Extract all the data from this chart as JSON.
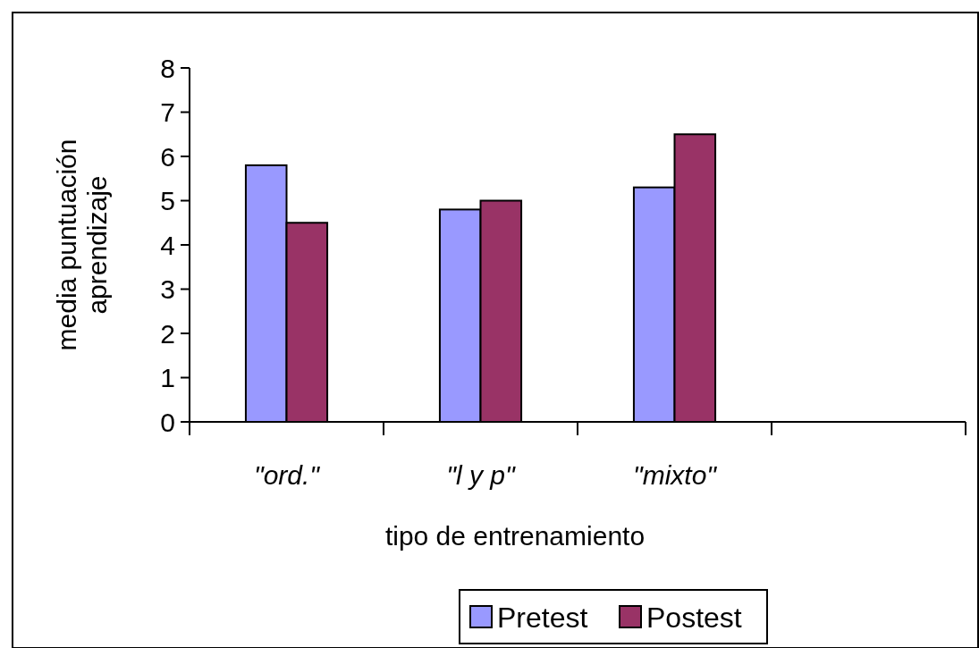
{
  "chart_data": {
    "type": "bar",
    "xlabel": "tipo de entrenamiento",
    "ylabel": "media puntuación aprendizaje",
    "categories": [
      "\"ord.\"",
      "\"l y p\"",
      "\"mixto\"",
      null
    ],
    "series": [
      {
        "name": "Pretest",
        "color": "#9999ff",
        "values": [
          5.8,
          4.8,
          5.3,
          null
        ]
      },
      {
        "name": "Postest",
        "color": "#993366",
        "values": [
          4.5,
          5.0,
          6.5,
          null
        ]
      }
    ],
    "ylim": [
      0,
      8
    ],
    "yticks": [
      0,
      1,
      2,
      3,
      4,
      5,
      6,
      7,
      8
    ],
    "grid": false,
    "legend": "bottom"
  }
}
